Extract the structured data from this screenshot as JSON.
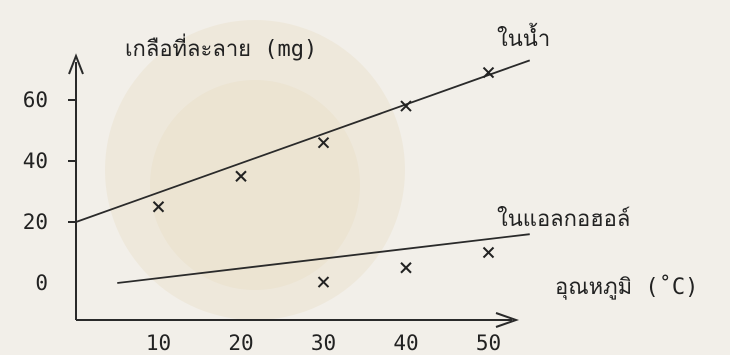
{
  "chart_data": {
    "type": "line",
    "ylabel": "เกลือที่ละลาย (mg)",
    "xlabel": "อุณหภูมิ (˚C)",
    "x_ticks": [
      10,
      20,
      30,
      40,
      50
    ],
    "y_ticks": [
      0,
      20,
      40,
      60
    ],
    "xlim": [
      0,
      60
    ],
    "ylim": [
      0,
      72
    ],
    "grid": false,
    "series": [
      {
        "name": "ในน้ำ",
        "line": [
          [
            0,
            20
          ],
          [
            55,
            73
          ]
        ],
        "points": [
          [
            10,
            25
          ],
          [
            20,
            35
          ],
          [
            30,
            46
          ],
          [
            40,
            58
          ],
          [
            50,
            69
          ]
        ]
      },
      {
        "name": "ในแอลกอฮอล์",
        "line": [
          [
            5,
            0
          ],
          [
            55,
            16
          ]
        ],
        "points": [
          [
            30,
            0.3
          ],
          [
            40,
            5
          ],
          [
            50,
            10
          ]
        ]
      }
    ]
  }
}
